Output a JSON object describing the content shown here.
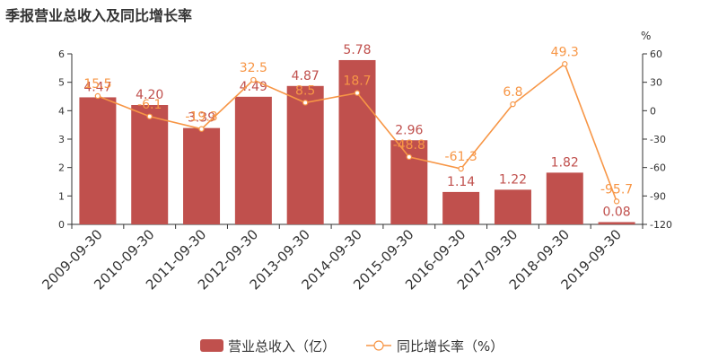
{
  "chart_data": {
    "type": "bar",
    "title": "季报营业总收入及同比增长率",
    "categories": [
      "2009-09-30",
      "2010-09-30",
      "2011-09-30",
      "2012-09-30",
      "2013-09-30",
      "2014-09-30",
      "2015-09-30",
      "2016-09-30",
      "2017-09-30",
      "2018-09-30",
      "2019-09-30"
    ],
    "series": [
      {
        "name": "营业总收入（亿）",
        "type": "bar",
        "axis": "left",
        "color": "#c0504d",
        "values": [
          4.47,
          4.2,
          3.39,
          4.49,
          4.87,
          5.78,
          2.96,
          1.14,
          1.22,
          1.82,
          0.08
        ],
        "labels": [
          "4.47",
          "4.20",
          "3.39",
          "4.49",
          "4.87",
          "5.78",
          "2.96",
          "1.14",
          "1.22",
          "1.82",
          "0.08"
        ]
      },
      {
        "name": "同比增长率（%）",
        "type": "line",
        "axis": "right",
        "color": "#f79646",
        "values": [
          15.5,
          -6.1,
          -19.3,
          32.5,
          8.5,
          18.7,
          -48.8,
          -61.3,
          6.8,
          49.3,
          -95.7
        ],
        "labels": [
          "15.5",
          "-6.1",
          "-19.3",
          "32.5",
          "8.5",
          "18.7",
          "-48.8",
          "-61.3",
          "6.8",
          "49.3",
          "-95.7"
        ]
      }
    ],
    "y_left": {
      "ylim": [
        0,
        6
      ],
      "ticks": [
        "0",
        "1",
        "2",
        "3",
        "4",
        "5",
        "6"
      ]
    },
    "y_right": {
      "ylim": [
        -120,
        60
      ],
      "ticks": [
        "-120",
        "-90",
        "-60",
        "-30",
        "0",
        "30",
        "60"
      ],
      "unit": "%"
    },
    "grid": false,
    "legend_position": "bottom-center"
  }
}
